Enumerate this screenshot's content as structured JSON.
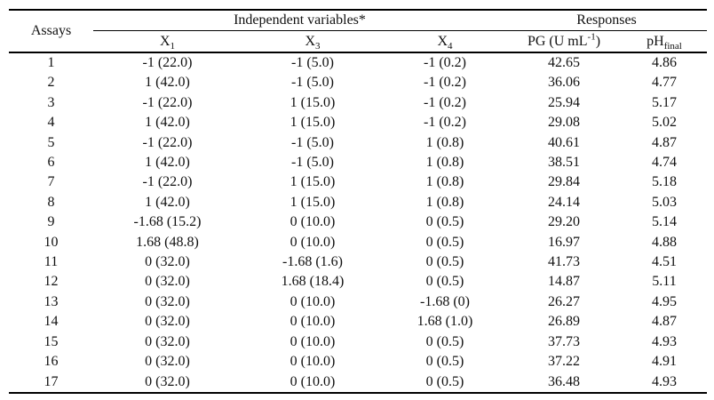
{
  "table": {
    "header": {
      "assays": "Assays",
      "independent_group": "Independent variables*",
      "responses_group": "Responses",
      "x1_base": "X",
      "x1_sub": "1",
      "x3_base": "X",
      "x3_sub": "3",
      "x4_base": "X",
      "x4_sub": "4",
      "pg_pre": "PG (U mL",
      "pg_sup": "-1",
      "pg_post": ")",
      "ph_pre": "pH",
      "ph_sub": "final"
    },
    "rows": [
      [
        "1",
        "-1 (22.0)",
        "-1 (5.0)",
        "-1 (0.2)",
        "42.65",
        "4.86"
      ],
      [
        "2",
        "1 (42.0)",
        "-1 (5.0)",
        "-1 (0.2)",
        "36.06",
        "4.77"
      ],
      [
        "3",
        "-1 (22.0)",
        "1 (15.0)",
        "-1 (0.2)",
        "25.94",
        "5.17"
      ],
      [
        "4",
        "1 (42.0)",
        "1 (15.0)",
        "-1 (0.2)",
        "29.08",
        "5.02"
      ],
      [
        "5",
        "-1 (22.0)",
        "-1 (5.0)",
        "1 (0.8)",
        "40.61",
        "4.87"
      ],
      [
        "6",
        "1 (42.0)",
        "-1 (5.0)",
        "1 (0.8)",
        "38.51",
        "4.74"
      ],
      [
        "7",
        "-1 (22.0)",
        "1 (15.0)",
        "1 (0.8)",
        "29.84",
        "5.18"
      ],
      [
        "8",
        "1 (42.0)",
        "1 (15.0)",
        "1 (0.8)",
        "24.14",
        "5.03"
      ],
      [
        "9",
        "-1.68 (15.2)",
        "0 (10.0)",
        "0 (0.5)",
        "29.20",
        "5.14"
      ],
      [
        "10",
        "1.68 (48.8)",
        "0 (10.0)",
        "0 (0.5)",
        "16.97",
        "4.88"
      ],
      [
        "11",
        "0 (32.0)",
        "-1.68 (1.6)",
        "0 (0.5)",
        "41.73",
        "4.51"
      ],
      [
        "12",
        "0 (32.0)",
        "1.68 (18.4)",
        "0 (0.5)",
        "14.87",
        "5.11"
      ],
      [
        "13",
        "0 (32.0)",
        "0 (10.0)",
        "-1.68 (0)",
        "26.27",
        "4.95"
      ],
      [
        "14",
        "0 (32.0)",
        "0 (10.0)",
        "1.68 (1.0)",
        "26.89",
        "4.87"
      ],
      [
        "15",
        "0 (32.0)",
        "0 (10.0)",
        "0 (0.5)",
        "37.73",
        "4.93"
      ],
      [
        "16",
        "0 (32.0)",
        "0 (10.0)",
        "0 (0.5)",
        "37.22",
        "4.91"
      ],
      [
        "17",
        "0 (32.0)",
        "0 (10.0)",
        "0 (0.5)",
        "36.48",
        "4.93"
      ]
    ]
  },
  "colors": {
    "text": "#111111",
    "rule": "#000000",
    "background": "#ffffff"
  }
}
